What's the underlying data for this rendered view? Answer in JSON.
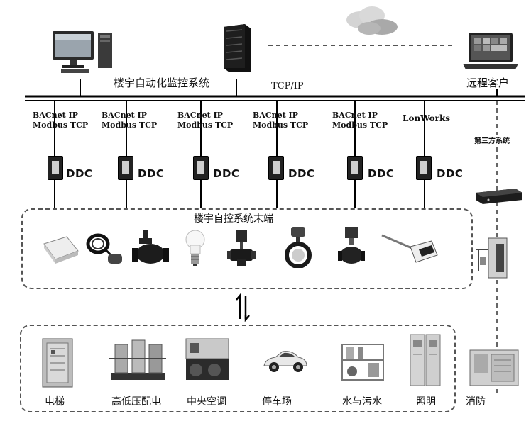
{
  "top": {
    "bms_label": "楼宇自动化监控系统",
    "network_label": "TCP/IP",
    "remote_label": "远程客户"
  },
  "third_party": {
    "label": "第三方系统"
  },
  "ddc_units": [
    {
      "protocol_line1": "BACnet IP",
      "protocol_line2": "Modbus TCP",
      "label": "DDC"
    },
    {
      "protocol_line1": "BACnet IP",
      "protocol_line2": "Modbus TCP",
      "label": "DDC"
    },
    {
      "protocol_line1": "BACnet IP",
      "protocol_line2": "Modbus TCP",
      "label": "DDC"
    },
    {
      "protocol_line1": "BACnet IP",
      "protocol_line2": "Modbus TCP",
      "label": "DDC"
    },
    {
      "protocol_line1": "BACnet IP",
      "protocol_line2": "Modbus TCP",
      "label": "DDC"
    },
    {
      "protocol_line1": "LonWorks",
      "protocol_line2": "",
      "label": "DDC"
    }
  ],
  "terminal": {
    "title": "楼宇自控系统末端",
    "devices": [
      "sensor-box-icon",
      "float-switch-icon",
      "valve-icon",
      "bulb-icon",
      "actuator-valve-icon",
      "butterfly-valve-icon",
      "control-valve-icon",
      "probe-sensor-icon"
    ]
  },
  "equipment": [
    {
      "label": "电梯",
      "icon": "elevator-cabinet-icon"
    },
    {
      "label": "高低压配电",
      "icon": "power-distribution-icon"
    },
    {
      "label": "中央空调",
      "icon": "chiller-icon"
    },
    {
      "label": "停车场",
      "icon": "car-icon"
    },
    {
      "label": "水与污水",
      "icon": "water-system-icon"
    },
    {
      "label": "照明",
      "icon": "lighting-cabinet-icon"
    },
    {
      "label": "消防",
      "icon": "fire-panel-icon"
    }
  ]
}
